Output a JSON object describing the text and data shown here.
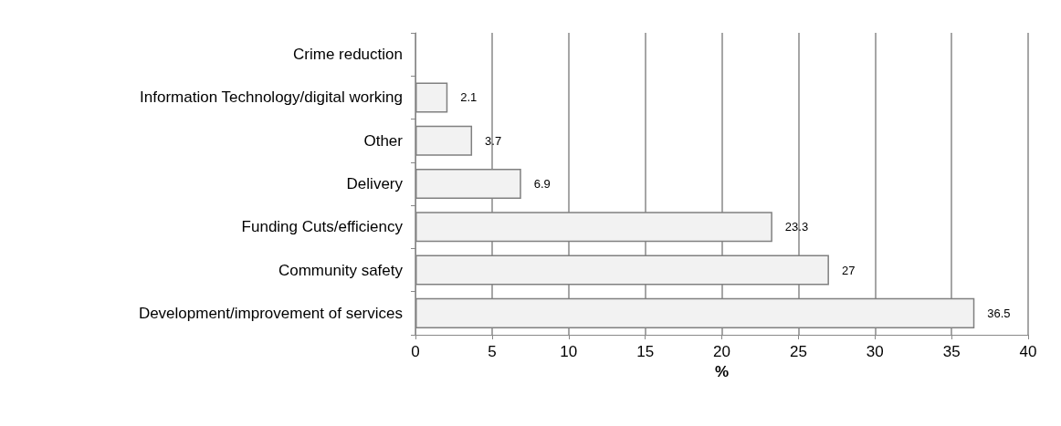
{
  "chart_data": {
    "type": "bar",
    "orientation": "horizontal",
    "xlabel": "%",
    "categories": [
      "Crime reduction",
      "Information Technology/digital working",
      "Other",
      "Delivery",
      "Funding Cuts/efficiency",
      "Community safety",
      "Development/improvement of services"
    ],
    "values": [
      null,
      2.1,
      3.7,
      6.9,
      23.3,
      27,
      36.5
    ],
    "color": "#f2f2f2",
    "xlim": [
      0,
      40
    ],
    "xticks": [
      0,
      5,
      10,
      15,
      20,
      25,
      30,
      35,
      40
    ],
    "grid": "x",
    "data_labels": true
  }
}
